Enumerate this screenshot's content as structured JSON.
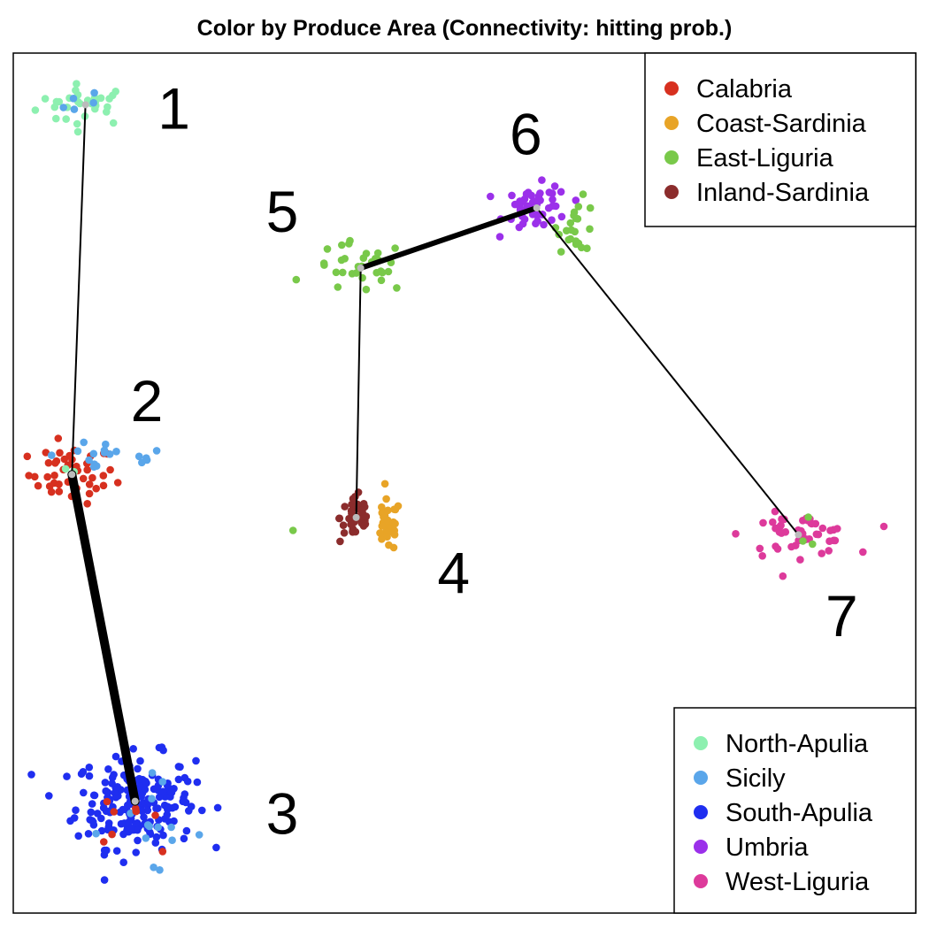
{
  "chart_data": {
    "type": "scatter",
    "title": "Color by Produce Area (Connectivity: hitting prob.)",
    "xlabel": "",
    "ylabel": "",
    "grid": false,
    "axes_ticks": false,
    "xlim": [
      0,
      100
    ],
    "ylim": [
      0,
      100
    ],
    "groups": [
      {
        "name": "Calabria",
        "color": "#d7301f"
      },
      {
        "name": "Coast-Sardinia",
        "color": "#e8a427"
      },
      {
        "name": "East-Liguria",
        "color": "#79c94a"
      },
      {
        "name": "Inland-Sardinia",
        "color": "#8b2c2c"
      },
      {
        "name": "North-Apulia",
        "color": "#8df0b0"
      },
      {
        "name": "Sicily",
        "color": "#5aa6ea"
      },
      {
        "name": "South-Apulia",
        "color": "#1f2ef0"
      },
      {
        "name": "Umbria",
        "color": "#9b30ea"
      },
      {
        "name": "West-Liguria",
        "color": "#dd3a9b"
      }
    ],
    "legends": [
      {
        "position": "top-right",
        "entries": [
          "Calabria",
          "Coast-Sardinia",
          "East-Liguria",
          "Inland-Sardinia"
        ]
      },
      {
        "position": "bottom-right",
        "entries": [
          "North-Apulia",
          "Sicily",
          "South-Apulia",
          "Umbria",
          "West-Liguria"
        ]
      }
    ],
    "clusters": [
      {
        "label": "1",
        "center": [
          8,
          94
        ],
        "label_pos": [
          16,
          93
        ]
      },
      {
        "label": "2",
        "center": [
          6.5,
          51
        ],
        "label_pos": [
          13,
          59
        ]
      },
      {
        "label": "3",
        "center": [
          13.5,
          13
        ],
        "label_pos": [
          28,
          11
        ]
      },
      {
        "label": "4",
        "center": [
          38,
          46
        ],
        "label_pos": [
          47,
          39
        ]
      },
      {
        "label": "5",
        "center": [
          38.5,
          75
        ],
        "label_pos": [
          28,
          81
        ]
      },
      {
        "label": "6",
        "center": [
          58,
          82
        ],
        "label_pos": [
          55,
          90
        ]
      },
      {
        "label": "7",
        "center": [
          87,
          44
        ],
        "label_pos": [
          90,
          34
        ]
      }
    ],
    "edges": [
      {
        "from": "1",
        "to": "2",
        "weight": 1
      },
      {
        "from": "2",
        "to": "3",
        "weight": 5
      },
      {
        "from": "5",
        "to": "4",
        "weight": 1
      },
      {
        "from": "5",
        "to": "6",
        "weight": 3
      },
      {
        "from": "6",
        "to": "7",
        "weight": 1
      }
    ],
    "point_groups": [
      {
        "cluster": "1",
        "group": "North-Apulia",
        "count": 30,
        "spread": [
          4.5,
          2.0
        ]
      },
      {
        "cluster": "1",
        "group": "Sicily",
        "count": 5,
        "spread": [
          2.5,
          1.5
        ]
      },
      {
        "cluster": "2",
        "group": "Calabria",
        "count": 45,
        "spread": [
          4.0,
          2.8
        ]
      },
      {
        "cluster": "2",
        "group": "Sicily",
        "count": 18,
        "spread": [
          6.0,
          1.5
        ],
        "offset": [
          4,
          2
        ]
      },
      {
        "cluster": "2",
        "group": "North-Apulia",
        "count": 2,
        "spread": [
          1.0,
          0.5
        ]
      },
      {
        "cluster": "3",
        "group": "South-Apulia",
        "count": 200,
        "spread": [
          5.5,
          4.5
        ]
      },
      {
        "cluster": "3",
        "group": "Sicily",
        "count": 14,
        "spread": [
          5.5,
          4.5
        ],
        "offset": [
          1,
          -3
        ]
      },
      {
        "cluster": "3",
        "group": "Calabria",
        "count": 8,
        "spread": [
          3.0,
          2.5
        ],
        "offset": [
          -1,
          -2
        ]
      },
      {
        "cluster": "4",
        "group": "Inland-Sardinia",
        "count": 40,
        "spread": [
          1.5,
          2.5
        ]
      },
      {
        "cluster": "4",
        "group": "Coast-Sardinia",
        "count": 32,
        "spread": [
          1.2,
          2.5
        ],
        "offset": [
          3.5,
          -1
        ]
      },
      {
        "cluster": "4",
        "group": "East-Liguria",
        "count": 1,
        "spread": [
          0,
          0
        ],
        "offset": [
          -7,
          -1.5
        ]
      },
      {
        "cluster": "5",
        "group": "East-Liguria",
        "count": 32,
        "spread": [
          4.5,
          2.5
        ]
      },
      {
        "cluster": "6",
        "group": "Umbria",
        "count": 50,
        "spread": [
          3.0,
          2.2
        ]
      },
      {
        "cluster": "6",
        "group": "East-Liguria",
        "count": 22,
        "spread": [
          1.8,
          2.5
        ],
        "offset": [
          4.5,
          -2
        ]
      },
      {
        "cluster": "7",
        "group": "West-Liguria",
        "count": 50,
        "spread": [
          5.0,
          2.0
        ]
      },
      {
        "cluster": "7",
        "group": "East-Liguria",
        "count": 3,
        "spread": [
          3.0,
          4.0
        ]
      }
    ]
  }
}
